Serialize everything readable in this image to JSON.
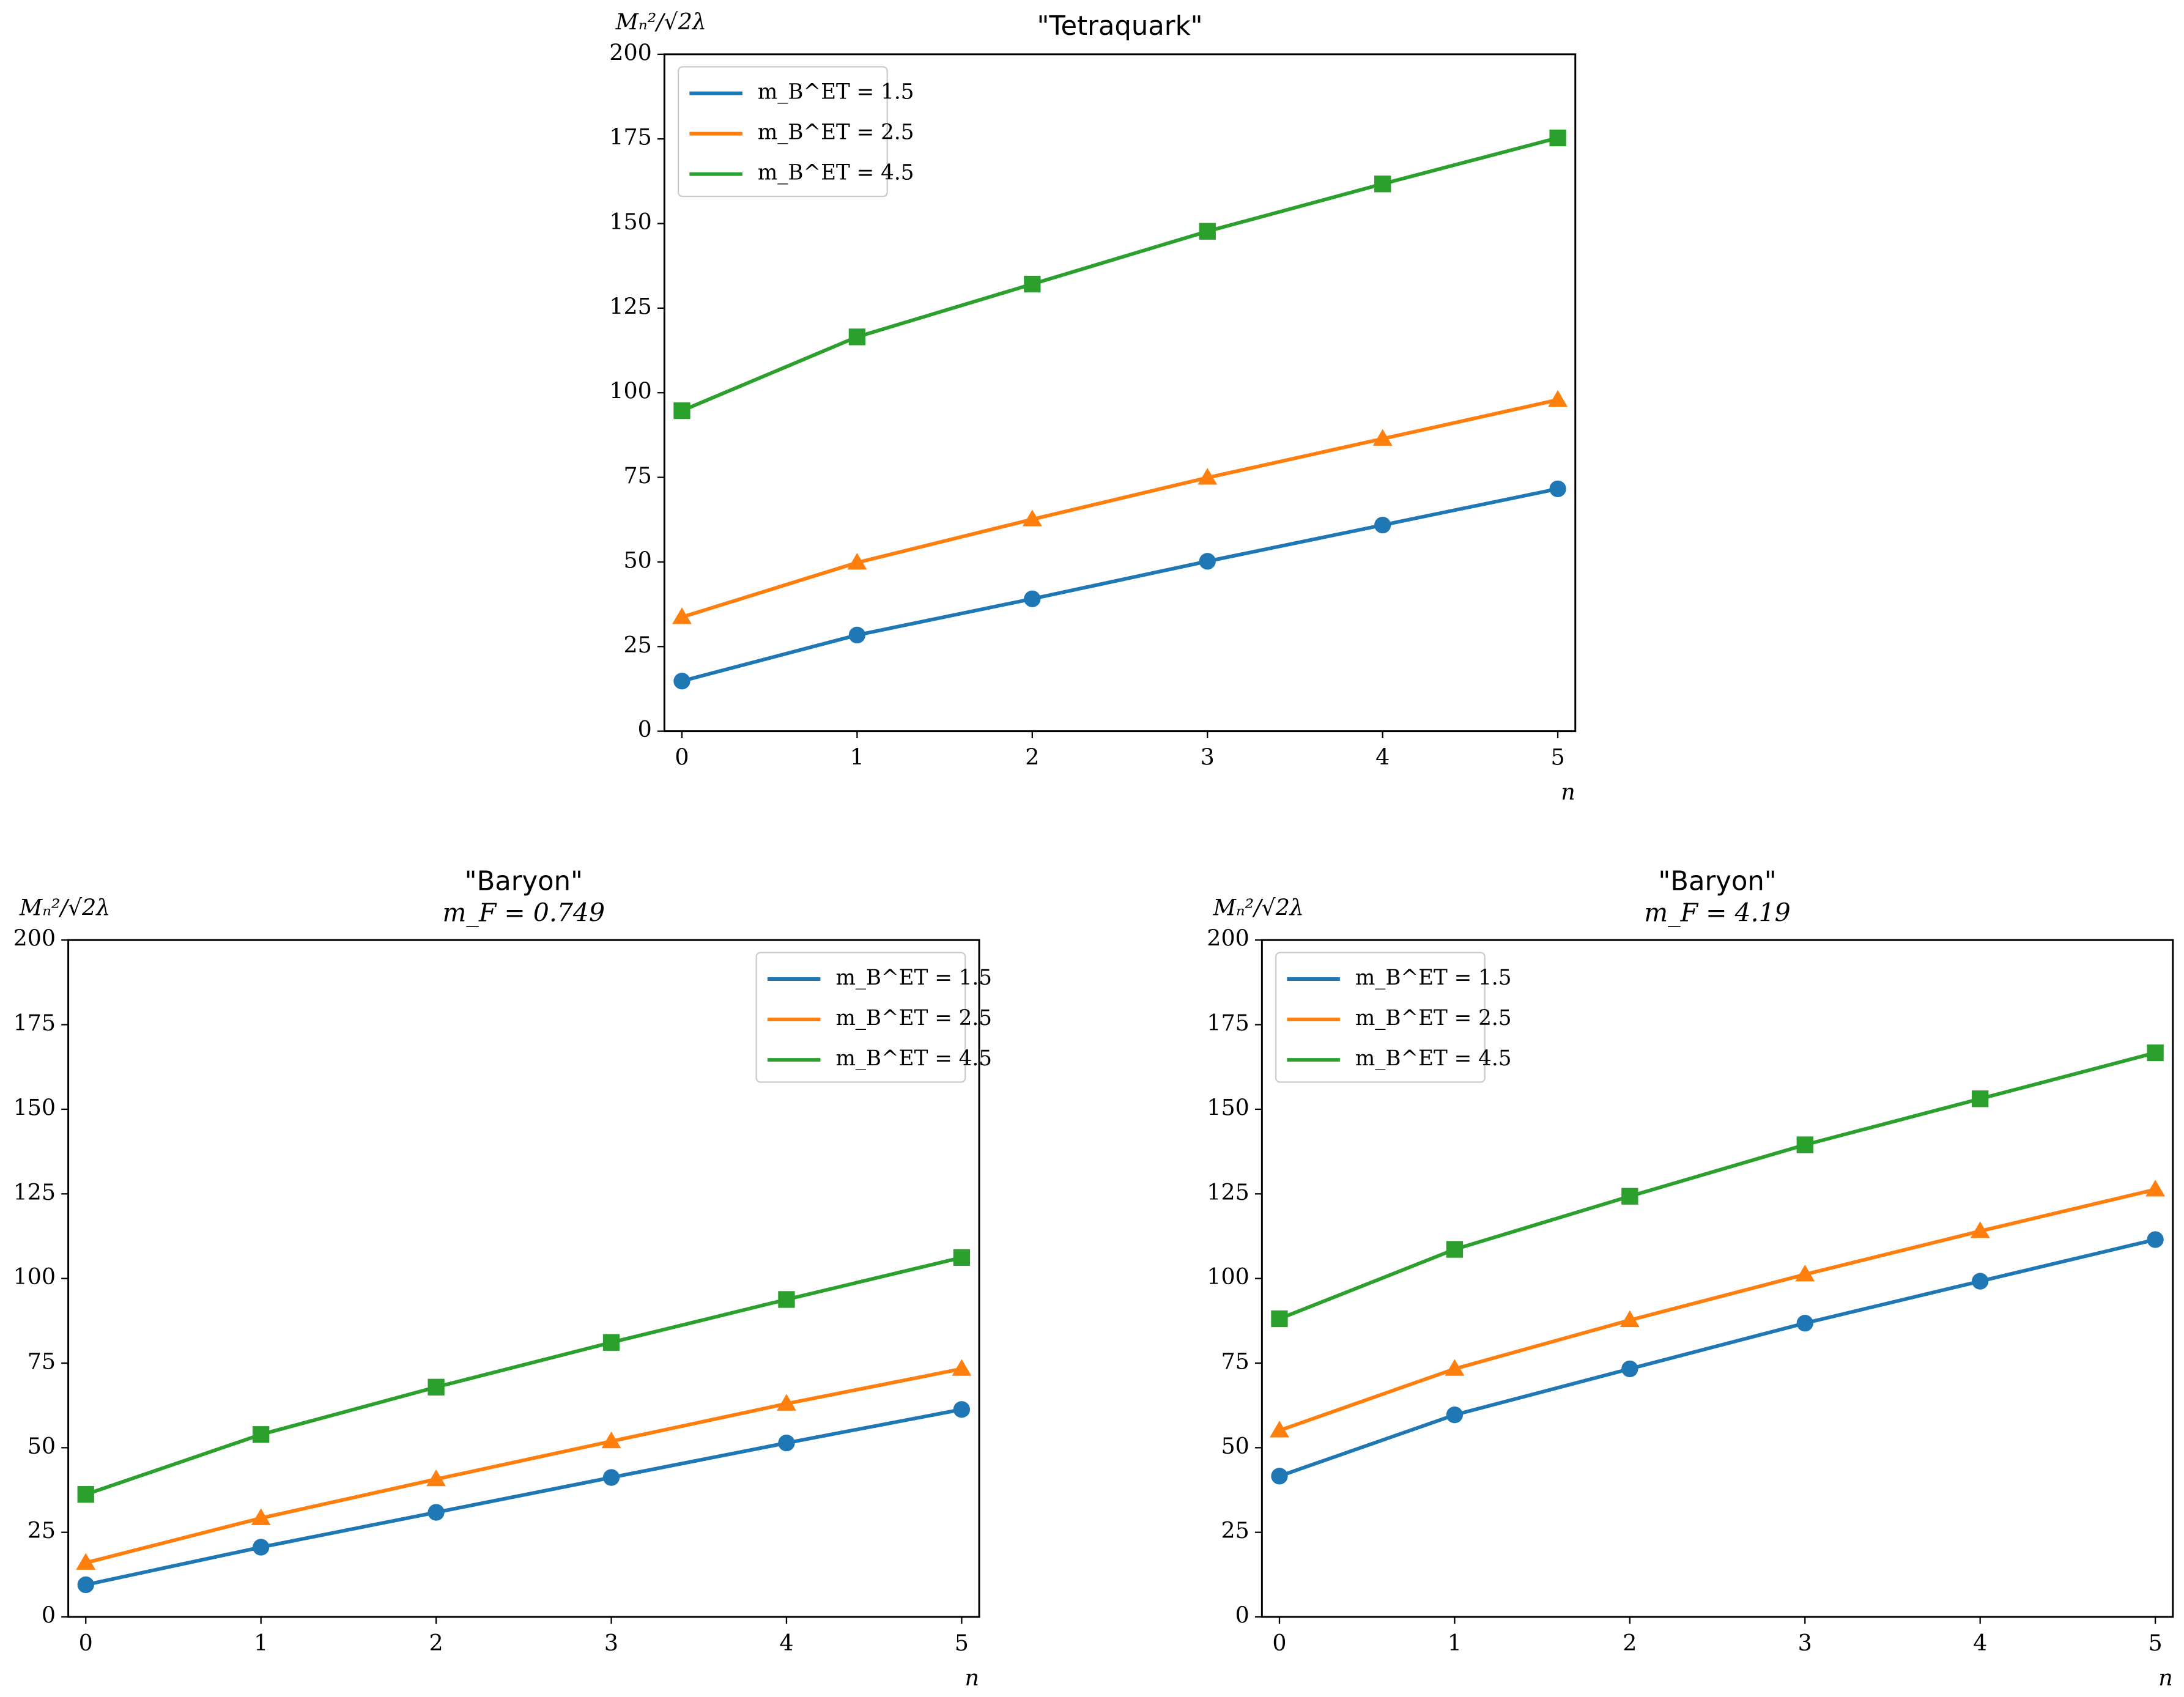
{
  "chart_data": [
    {
      "type": "line",
      "title": "\"Tetraquark\"",
      "y_label": "Mₙ²/√2λ",
      "x_label": "n",
      "x": [
        0,
        1,
        2,
        3,
        4,
        5
      ],
      "xlim": [
        -0.1,
        5.1
      ],
      "xticks": [
        0,
        1,
        2,
        3,
        4,
        5
      ],
      "ylim": [
        0,
        200
      ],
      "yticks": [
        0,
        25,
        50,
        75,
        100,
        125,
        150,
        175,
        200
      ],
      "legend": "upper left",
      "series": [
        {
          "name": "m_B^ET = 1.5",
          "color": "#1f77b4",
          "marker": "circle",
          "values": [
            14.8,
            28.4,
            39.1,
            50.2,
            60.9,
            71.6
          ]
        },
        {
          "name": "m_B^ET = 2.5",
          "color": "#ff7f0e",
          "marker": "triangle",
          "values": [
            33.7,
            49.8,
            62.6,
            74.9,
            86.4,
            97.9
          ]
        },
        {
          "name": "m_B^ET = 4.5",
          "color": "#2ca02c",
          "marker": "square",
          "values": [
            94.7,
            116.5,
            132.1,
            147.7,
            161.7,
            175.3
          ]
        }
      ]
    },
    {
      "type": "line",
      "title": "\"Baryon\"",
      "subtitle": "m_F = 0.749",
      "y_label": "Mₙ²/√2λ",
      "x_label": "n",
      "x": [
        0,
        1,
        2,
        3,
        4,
        5
      ],
      "xlim": [
        -0.1,
        5.1
      ],
      "xticks": [
        0,
        1,
        2,
        3,
        4,
        5
      ],
      "ylim": [
        0,
        200
      ],
      "yticks": [
        0,
        25,
        50,
        75,
        100,
        125,
        150,
        175,
        200
      ],
      "legend": "upper right",
      "series": [
        {
          "name": "m_B^ET = 1.5",
          "color": "#1f77b4",
          "marker": "circle",
          "values": [
            9.5,
            20.6,
            30.9,
            41.2,
            51.4,
            61.3
          ]
        },
        {
          "name": "m_B^ET = 2.5",
          "color": "#ff7f0e",
          "marker": "triangle",
          "values": [
            16.0,
            29.2,
            40.7,
            51.9,
            63.0,
            73.3
          ]
        },
        {
          "name": "m_B^ET = 4.5",
          "color": "#2ca02c",
          "marker": "square",
          "values": [
            36.2,
            53.9,
            67.9,
            81.1,
            93.8,
            106.2
          ]
        }
      ]
    },
    {
      "type": "line",
      "title": "\"Baryon\"",
      "subtitle": "m_F = 4.19",
      "y_label": "Mₙ²/√2λ",
      "x_label": "n",
      "x": [
        0,
        1,
        2,
        3,
        4,
        5
      ],
      "xlim": [
        -0.1,
        5.1
      ],
      "xticks": [
        0,
        1,
        2,
        3,
        4,
        5
      ],
      "ylim": [
        0,
        200
      ],
      "yticks": [
        0,
        25,
        50,
        75,
        100,
        125,
        150,
        175,
        200
      ],
      "legend": "upper left",
      "series": [
        {
          "name": "m_B^ET = 1.5",
          "color": "#1f77b4",
          "marker": "circle",
          "values": [
            41.6,
            59.7,
            73.3,
            86.8,
            99.2,
            111.5
          ]
        },
        {
          "name": "m_B^ET = 2.5",
          "color": "#ff7f0e",
          "marker": "triangle",
          "values": [
            55.1,
            73.3,
            87.7,
            101.2,
            114.0,
            126.3
          ]
        },
        {
          "name": "m_B^ET = 4.5",
          "color": "#2ca02c",
          "marker": "square",
          "values": [
            88.1,
            108.6,
            124.3,
            139.5,
            153.1,
            166.7
          ]
        }
      ]
    }
  ]
}
